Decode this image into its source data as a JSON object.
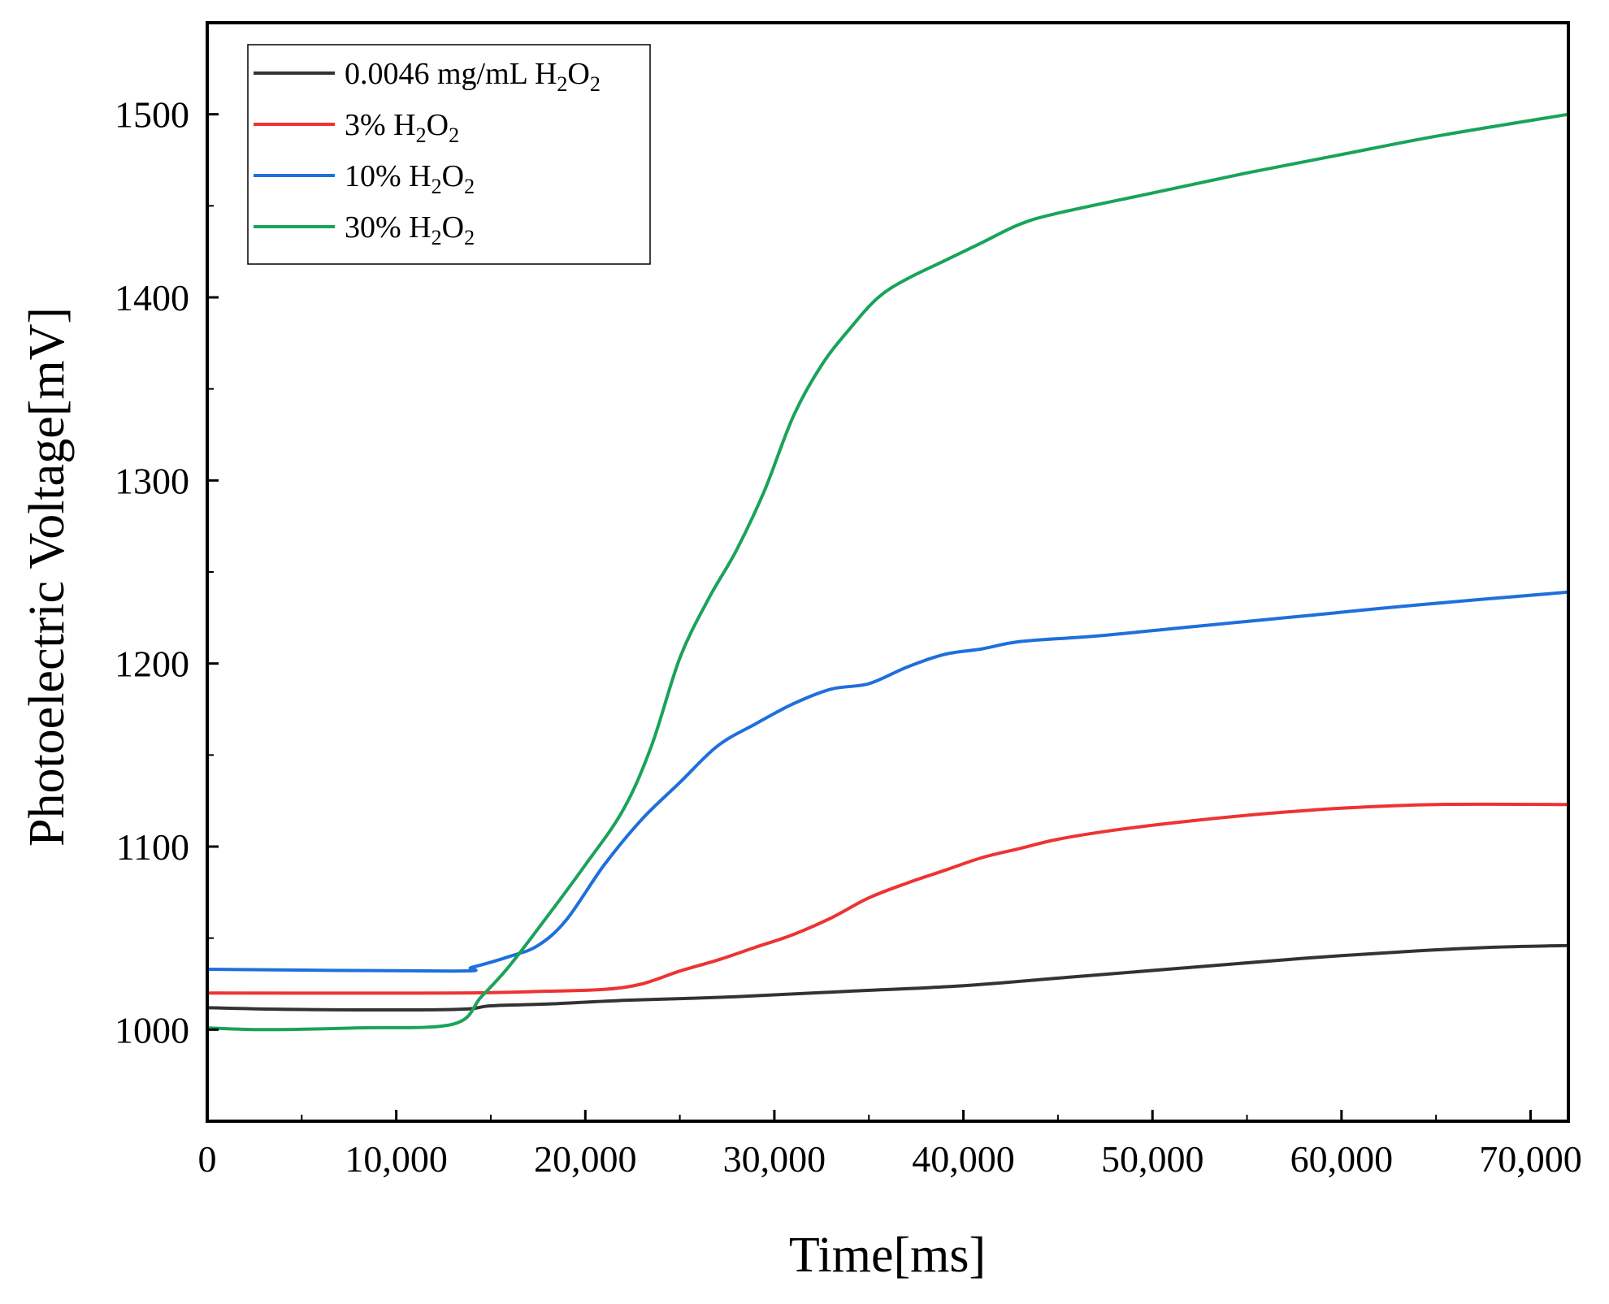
{
  "chart_data": {
    "type": "line",
    "title": "",
    "xlabel": "Time[ms]",
    "ylabel": "Photoelectric Voltage[mV]",
    "xlim": [
      0,
      72000
    ],
    "ylim": [
      950,
      1550
    ],
    "x_ticks": [
      0,
      10000,
      20000,
      30000,
      40000,
      50000,
      60000,
      70000
    ],
    "x_tick_labels": [
      "0",
      "10,000",
      "20,000",
      "30,000",
      "40,000",
      "50,000",
      "60,000",
      "70,000"
    ],
    "y_ticks": [
      1000,
      1100,
      1200,
      1300,
      1400,
      1500
    ],
    "y_tick_labels": [
      "1000",
      "1100",
      "1200",
      "1300",
      "1400",
      "1500"
    ],
    "legend_position": "top-left",
    "series": [
      {
        "name": "0.0046 mg/mL H2O2",
        "legend_prefix": "0.0046 mg/mL H",
        "color": "#333333",
        "points": [
          [
            0,
            1012
          ],
          [
            5000,
            1011
          ],
          [
            13000,
            1011
          ],
          [
            15000,
            1013
          ],
          [
            18000,
            1014
          ],
          [
            22000,
            1016
          ],
          [
            28000,
            1018
          ],
          [
            34000,
            1021
          ],
          [
            40000,
            1024
          ],
          [
            46000,
            1029
          ],
          [
            52000,
            1034
          ],
          [
            58000,
            1039
          ],
          [
            64000,
            1043
          ],
          [
            68000,
            1045
          ],
          [
            72000,
            1046
          ]
        ]
      },
      {
        "name": "3% H2O2",
        "legend_prefix": "3% H",
        "color": "#ee3333",
        "points": [
          [
            0,
            1020
          ],
          [
            13000,
            1020
          ],
          [
            18000,
            1021
          ],
          [
            21000,
            1022
          ],
          [
            23000,
            1025
          ],
          [
            25000,
            1032
          ],
          [
            27000,
            1038
          ],
          [
            29000,
            1045
          ],
          [
            31000,
            1052
          ],
          [
            33000,
            1061
          ],
          [
            35000,
            1072
          ],
          [
            37000,
            1080
          ],
          [
            39000,
            1087
          ],
          [
            41000,
            1094
          ],
          [
            43000,
            1099
          ],
          [
            45000,
            1104
          ],
          [
            48000,
            1109
          ],
          [
            52000,
            1114
          ],
          [
            56000,
            1118
          ],
          [
            60000,
            1121
          ],
          [
            65000,
            1123
          ],
          [
            72000,
            1123
          ]
        ]
      },
      {
        "name": "10% H2O2",
        "legend_prefix": "10% H",
        "color": "#1f6fdc",
        "points": [
          [
            0,
            1033
          ],
          [
            13000,
            1032
          ],
          [
            14000,
            1034
          ],
          [
            16000,
            1040
          ],
          [
            17500,
            1046
          ],
          [
            19000,
            1060
          ],
          [
            21000,
            1090
          ],
          [
            23000,
            1115
          ],
          [
            25000,
            1135
          ],
          [
            27000,
            1155
          ],
          [
            29000,
            1167
          ],
          [
            31000,
            1178
          ],
          [
            33000,
            1186
          ],
          [
            35000,
            1189
          ],
          [
            37000,
            1198
          ],
          [
            39000,
            1205
          ],
          [
            41000,
            1208
          ],
          [
            43000,
            1212
          ],
          [
            47000,
            1215
          ],
          [
            52000,
            1220
          ],
          [
            58000,
            1226
          ],
          [
            64000,
            1232
          ],
          [
            72000,
            1239
          ]
        ]
      },
      {
        "name": "30% H2O2",
        "legend_prefix": "30% H",
        "color": "#1aa35a",
        "points": [
          [
            0,
            1001
          ],
          [
            3000,
            1000
          ],
          [
            8000,
            1001
          ],
          [
            13000,
            1003
          ],
          [
            14500,
            1018
          ],
          [
            16000,
            1035
          ],
          [
            18000,
            1062
          ],
          [
            20000,
            1090
          ],
          [
            22000,
            1120
          ],
          [
            23500,
            1155
          ],
          [
            25000,
            1203
          ],
          [
            26500,
            1235
          ],
          [
            28000,
            1262
          ],
          [
            29500,
            1295
          ],
          [
            31000,
            1335
          ],
          [
            32500,
            1363
          ],
          [
            34000,
            1383
          ],
          [
            35500,
            1400
          ],
          [
            37000,
            1410
          ],
          [
            39000,
            1420
          ],
          [
            41000,
            1430
          ],
          [
            43000,
            1440
          ],
          [
            45000,
            1446
          ],
          [
            50000,
            1457
          ],
          [
            55000,
            1468
          ],
          [
            60000,
            1478
          ],
          [
            65000,
            1488
          ],
          [
            72000,
            1500
          ]
        ]
      }
    ]
  }
}
